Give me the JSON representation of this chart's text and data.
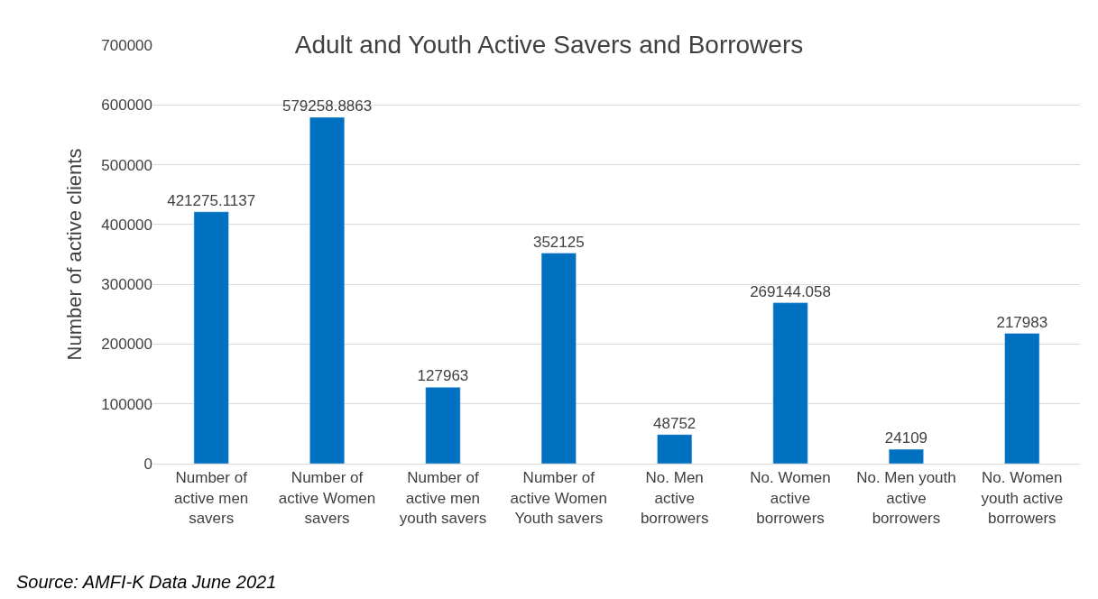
{
  "chart_data": {
    "type": "bar",
    "title": "Adult and Youth Active Savers and Borrowers",
    "ylabel": "Number of active clients",
    "categories": [
      "Number of active men savers",
      "Number of active Women savers",
      "Number of active men youth savers",
      "Number of active Women Youth savers",
      "No. Men active borrowers",
      "No. Women active borrowers",
      "No. Men youth active borrowers",
      "No. Women youth active borrowers"
    ],
    "values": [
      421275.1137,
      579258.8863,
      127963,
      352125,
      48752,
      269144.058,
      24109,
      217983
    ],
    "color": "#0070c0",
    "data_labels": true,
    "ylim": [
      0,
      700000
    ],
    "yticks": [
      0,
      100000,
      200000,
      300000,
      400000,
      500000,
      600000,
      700000
    ],
    "grid": "y",
    "legend": false,
    "annotations": [
      "Source: AMFI-K Data June 2021"
    ]
  }
}
